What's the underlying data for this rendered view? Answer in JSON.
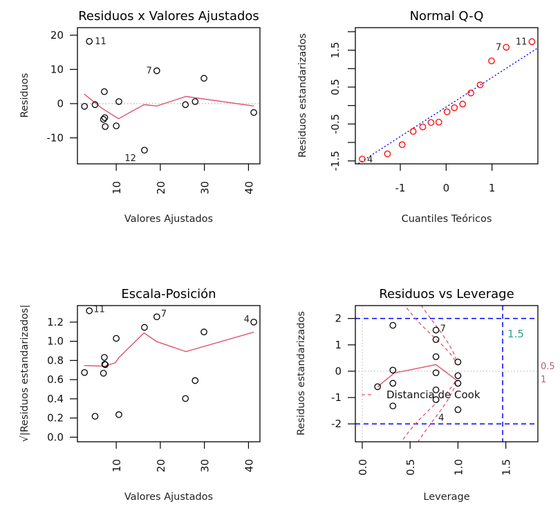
{
  "chart_data": [
    {
      "type": "scatter",
      "title": "Residuos x Valores Ajustados",
      "xlabel": "Valores Ajustados",
      "ylabel": "Residuos",
      "xlim": [
        1.2,
        42.6
      ],
      "ylim": [
        -17.6,
        22.2
      ],
      "xticks": [
        10,
        20,
        30,
        40
      ],
      "xtick_labels": [
        "10",
        "20",
        "30",
        "40"
      ],
      "yticks": [
        -10,
        0,
        10,
        20
      ],
      "ytick_labels": [
        "-10",
        "0",
        "10",
        "20"
      ],
      "grid": false,
      "reference_line_y": 0,
      "points": [
        {
          "x": 2.8,
          "y": -0.8
        },
        {
          "x": 3.9,
          "y": 18.2,
          "label": "11"
        },
        {
          "x": 5.2,
          "y": -0.3
        },
        {
          "x": 7.3,
          "y": 3.5
        },
        {
          "x": 7.4,
          "y": -4.1
        },
        {
          "x": 7.1,
          "y": -4.6
        },
        {
          "x": 7.5,
          "y": -6.7
        },
        {
          "x": 10.0,
          "y": -6.5
        },
        {
          "x": 10.6,
          "y": 0.6
        },
        {
          "x": 16.4,
          "y": -13.6,
          "label": "12"
        },
        {
          "x": 19.2,
          "y": 9.6,
          "label": "7"
        },
        {
          "x": 25.7,
          "y": -0.3
        },
        {
          "x": 27.9,
          "y": 0.6
        },
        {
          "x": 29.9,
          "y": 7.4
        },
        {
          "x": 41.2,
          "y": -2.6
        }
      ],
      "smooth": {
        "x": [
          2.7,
          6.7,
          10.5,
          16.3,
          19.2,
          25.8,
          41.2
        ],
        "y": [
          2.8,
          -1.3,
          -4.4,
          -0.3,
          -0.7,
          2.1,
          -0.7
        ]
      }
    },
    {
      "type": "scatter",
      "title": "Normal Q-Q",
      "xlabel": "Cuantiles Teóricos",
      "ylabel": "Residuos estandarizados",
      "xlim": [
        -1.98,
        2.0
      ],
      "ylim": [
        -1.58,
        2.11
      ],
      "xticks": [
        -1,
        0,
        1
      ],
      "xtick_labels": [
        "-1",
        "0",
        "1"
      ],
      "yticks": [
        -1.5,
        -1,
        -0.5,
        0,
        0.5,
        1,
        1.5,
        2
      ],
      "ytick_labels": [
        "-1.5",
        "",
        "-0.5",
        "",
        "0.5",
        "",
        "1.5",
        ""
      ],
      "grid": false,
      "qq_line": {
        "intercept": -0.04,
        "slope": 0.8
      },
      "points": [
        {
          "x": -1.83,
          "y": -1.45,
          "label": "4"
        },
        {
          "x": -1.28,
          "y": -1.31
        },
        {
          "x": -0.96,
          "y": -1.06
        },
        {
          "x": -0.72,
          "y": -0.7
        },
        {
          "x": -0.51,
          "y": -0.58
        },
        {
          "x": -0.33,
          "y": -0.46
        },
        {
          "x": -0.16,
          "y": -0.45
        },
        {
          "x": 0.02,
          "y": -0.17
        },
        {
          "x": 0.18,
          "y": -0.06
        },
        {
          "x": 0.36,
          "y": 0.04
        },
        {
          "x": 0.54,
          "y": 0.34
        },
        {
          "x": 0.74,
          "y": 0.56
        },
        {
          "x": 0.99,
          "y": 1.21
        },
        {
          "x": 1.31,
          "y": 1.58,
          "label": "7"
        },
        {
          "x": 1.87,
          "y": 1.73,
          "label": "11"
        }
      ]
    },
    {
      "type": "scatter",
      "title": "Escala-Posición",
      "xlabel": "Valores Ajustados",
      "ylabel": "√|Residuos estandarizados|",
      "xlim": [
        1.2,
        42.6
      ],
      "ylim": [
        -0.048,
        1.372
      ],
      "xticks": [
        10,
        20,
        30,
        40
      ],
      "xtick_labels": [
        "10",
        "20",
        "30",
        "40"
      ],
      "yticks": [
        0,
        0.2,
        0.4,
        0.6,
        0.8,
        1.0,
        1.2
      ],
      "ytick_labels": [
        "0.0",
        "0.2",
        "0.4",
        "0.6",
        "0.8",
        "1.0",
        "1.2"
      ],
      "grid": false,
      "points": [
        {
          "x": 2.8,
          "y": 0.674
        },
        {
          "x": 3.9,
          "y": 1.318,
          "label": "11"
        },
        {
          "x": 5.2,
          "y": 0.218
        },
        {
          "x": 7.3,
          "y": 0.832
        },
        {
          "x": 7.4,
          "y": 0.76
        },
        {
          "x": 7.1,
          "y": 0.667
        },
        {
          "x": 7.5,
          "y": 0.756
        },
        {
          "x": 10.0,
          "y": 1.03
        },
        {
          "x": 10.6,
          "y": 0.235
        },
        {
          "x": 16.4,
          "y": 1.145
        },
        {
          "x": 19.2,
          "y": 1.255,
          "label": "7"
        },
        {
          "x": 25.7,
          "y": 0.403
        },
        {
          "x": 27.9,
          "y": 0.59
        },
        {
          "x": 29.9,
          "y": 1.097
        },
        {
          "x": 41.2,
          "y": 1.2,
          "label": "4"
        }
      ],
      "smooth": {
        "x": [
          2.7,
          7.4,
          9.8,
          10.6,
          16.3,
          19.2,
          25.8,
          41.2
        ],
        "y": [
          0.747,
          0.74,
          0.776,
          0.83,
          1.087,
          0.996,
          0.893,
          1.095
        ]
      }
    },
    {
      "type": "scatter",
      "title": "Residuos vs Leverage",
      "xlabel": "Leverage",
      "ylabel": "Residuos estandarizados",
      "xlim": [
        -0.072,
        1.835
      ],
      "ylim": [
        -2.68,
        2.49
      ],
      "xticks": [
        0,
        0.5,
        1.0,
        1.5
      ],
      "xtick_labels": [
        "0.0",
        "0.5",
        "1.0",
        "1.5"
      ],
      "yticks": [
        -2,
        -1,
        0,
        1,
        2
      ],
      "ytick_labels": [
        "-2",
        "-1",
        "0",
        "1",
        "2"
      ],
      "grid": false,
      "reference_lines": {
        "h": [
          -2,
          2
        ],
        "v": 1.467,
        "v_label": "1.5"
      },
      "cook_levels": [
        0.5,
        1
      ],
      "cook_level_labels": [
        "0.5",
        "1"
      ],
      "legend": {
        "label": "Distancia de Cook",
        "placement": "bottom-left"
      },
      "points": [
        {
          "x": 0.16,
          "y": -0.59
        },
        {
          "x": 0.32,
          "y": 1.74
        },
        {
          "x": 0.32,
          "y": 0.04
        },
        {
          "x": 0.32,
          "y": -0.46
        },
        {
          "x": 0.32,
          "y": -1.32
        },
        {
          "x": 0.77,
          "y": 1.56,
          "label": "7"
        },
        {
          "x": 0.77,
          "y": 1.2
        },
        {
          "x": 0.77,
          "y": 0.55
        },
        {
          "x": 0.77,
          "y": -0.06
        },
        {
          "x": 0.77,
          "y": -0.71
        },
        {
          "x": 0.77,
          "y": -1.08
        },
        {
          "x": 1.0,
          "y": 0.35
        },
        {
          "x": 1.0,
          "y": -0.17
        },
        {
          "x": 1.0,
          "y": -0.46
        },
        {
          "x": 1.0,
          "y": -1.46,
          "label": "4"
        }
      ],
      "smooth": {
        "x": [
          0.16,
          0.335,
          0.77,
          1.0
        ],
        "y": [
          -0.59,
          -0.07,
          0.25,
          -0.38
        ]
      }
    }
  ],
  "colors": {
    "smooth": "#DF536B",
    "qq_points": "#FF0000",
    "qq_line": "#0000FF",
    "ref_blue": "#0000FF",
    "v_label": "#2AA198",
    "cook_labels": "#B06078",
    "zero_line": "#BEBEBE"
  }
}
